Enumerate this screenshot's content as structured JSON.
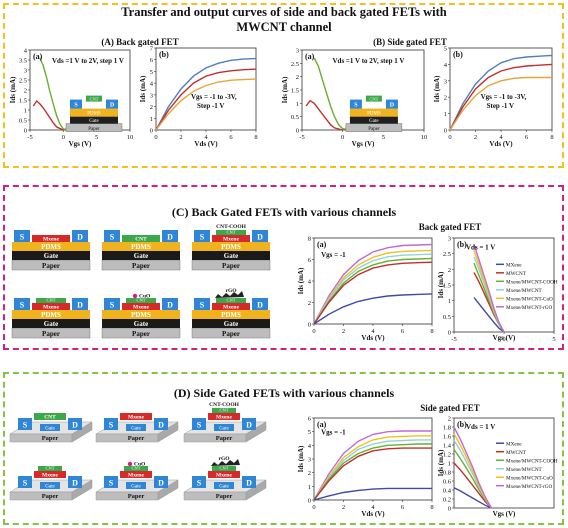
{
  "section1": {
    "title_line1": "Transfer and output curves of  side and back gated FETs with",
    "title_line2": "MWCNT channel",
    "back_label": "(A) Back gated FET",
    "side_label": "(B) Side gated FET"
  },
  "section2": {
    "title": "(C) Back Gated FETs with various channels",
    "chart_title": "Back gated FET"
  },
  "section3": {
    "title": "(D) Side Gated FETs with various channels",
    "chart_title": "Side gated FET"
  },
  "device_labels": {
    "s": "S",
    "d": "D",
    "gate": "Gate",
    "paper": "Paper",
    "pdms": "PDMS",
    "cnt": "CNT",
    "mxene": "Mxene",
    "cnt_cooh": "CNT-COOH",
    "cuo": "CuO",
    "rgo": "rGO"
  },
  "chart_data": [
    {
      "id": "A-a",
      "type": "line",
      "panel_label": "(a)",
      "annotation": "Vds =1 V to 2V, step 1 V",
      "xlabel": "Vgs (V)",
      "ylabel": "Ids (mA)",
      "xlim": [
        -5,
        10
      ],
      "ylim": [
        0,
        4
      ],
      "xticks": [
        -5,
        0,
        5,
        10
      ],
      "yticks": [
        0,
        0.5,
        1,
        1.5,
        2,
        2.5,
        3,
        3.5,
        4
      ],
      "series": [
        {
          "color": "#6aae2e",
          "x": [
            -3.5,
            -3,
            -2.5,
            -2,
            -1.5,
            -1,
            -0.5,
            0,
            1
          ],
          "y": [
            3.6,
            3.2,
            2.6,
            1.9,
            1.3,
            0.7,
            0.3,
            0.05,
            0.0
          ]
        },
        {
          "color": "#c0302c",
          "x": [
            -4.5,
            -4,
            -3.5,
            -3,
            -2.5,
            -2,
            -1.5,
            -1,
            0
          ],
          "y": [
            1.2,
            1.45,
            1.3,
            1.1,
            0.85,
            0.6,
            0.35,
            0.15,
            0.0
          ]
        }
      ]
    },
    {
      "id": "A-b",
      "type": "line",
      "panel_label": "(b)",
      "annotation": "Vgs = -1 to -3V, Step -1 V",
      "xlabel": "Vds (V)",
      "ylabel": "Ids (mA)",
      "xlim": [
        0,
        8
      ],
      "ylim": [
        0,
        7
      ],
      "xticks": [
        0,
        2,
        4,
        6,
        8
      ],
      "yticks": [
        0,
        1,
        2,
        3,
        4,
        5,
        6,
        7
      ],
      "series": [
        {
          "color": "#4d7fbf",
          "x": [
            0,
            1,
            2,
            3,
            4,
            5,
            6,
            7,
            8
          ],
          "y": [
            0,
            2.0,
            3.5,
            4.6,
            5.3,
            5.7,
            5.95,
            6.05,
            6.1
          ]
        },
        {
          "color": "#c0302c",
          "x": [
            0,
            1,
            2,
            3,
            4,
            5,
            6,
            7,
            8
          ],
          "y": [
            0,
            1.7,
            3.0,
            4.0,
            4.6,
            4.9,
            5.05,
            5.15,
            5.2
          ]
        },
        {
          "color": "#e8a33a",
          "x": [
            0,
            1,
            2,
            3,
            4,
            5,
            6,
            7,
            8
          ],
          "y": [
            0,
            1.4,
            2.5,
            3.3,
            3.8,
            4.1,
            4.25,
            4.3,
            4.35
          ]
        }
      ]
    },
    {
      "id": "B-a",
      "type": "line",
      "panel_label": "(a)",
      "annotation": "Vds =1 V to 2V, step 1 V",
      "xlabel": "Vgs (V)",
      "ylabel": "Ids (mA)",
      "xlim": [
        -5,
        10
      ],
      "ylim": [
        0,
        3
      ],
      "xticks": [
        -5,
        0,
        5,
        10
      ],
      "yticks": [
        0,
        0.5,
        1,
        1.5,
        2,
        2.5,
        3
      ],
      "series": [
        {
          "color": "#6aae2e",
          "x": [
            -3.5,
            -3,
            -2.5,
            -2,
            -1.5,
            -1,
            -0.5,
            0,
            1
          ],
          "y": [
            2.7,
            2.4,
            1.9,
            1.4,
            0.9,
            0.5,
            0.2,
            0.05,
            0.0
          ]
        },
        {
          "color": "#c0302c",
          "x": [
            -4.5,
            -4,
            -3.5,
            -3,
            -2.5,
            -2,
            -1.5,
            -1,
            0
          ],
          "y": [
            0.9,
            1.1,
            1.0,
            0.8,
            0.6,
            0.4,
            0.2,
            0.08,
            0.0
          ]
        }
      ]
    },
    {
      "id": "B-b",
      "type": "line",
      "panel_label": "(b)",
      "annotation": "Vgs = -1 to -3V, Step -1 V",
      "xlabel": "Vds (V)",
      "ylabel": "Ids (mA)",
      "xlim": [
        0,
        8
      ],
      "ylim": [
        0,
        5
      ],
      "xticks": [
        0,
        2,
        4,
        6,
        8
      ],
      "yticks": [
        0,
        1,
        2,
        3,
        4,
        5
      ],
      "series": [
        {
          "color": "#4d7fbf",
          "x": [
            0,
            1,
            2,
            3,
            4,
            5,
            6,
            7,
            8
          ],
          "y": [
            0,
            1.6,
            2.8,
            3.6,
            4.1,
            4.35,
            4.45,
            4.5,
            4.55
          ]
        },
        {
          "color": "#c0302c",
          "x": [
            0,
            1,
            2,
            3,
            4,
            5,
            6,
            7,
            8
          ],
          "y": [
            0,
            1.4,
            2.5,
            3.2,
            3.6,
            3.8,
            3.9,
            3.95,
            4.0
          ]
        },
        {
          "color": "#e8a33a",
          "x": [
            0,
            1,
            2,
            3,
            4,
            5,
            6,
            7,
            8
          ],
          "y": [
            0,
            1.2,
            2.1,
            2.7,
            3.0,
            3.15,
            3.2,
            3.2,
            3.2
          ]
        }
      ]
    },
    {
      "id": "C-a",
      "type": "line",
      "panel_label": "(a)",
      "annotation": "Vgs = -1",
      "xlabel": "Vds (V)",
      "ylabel": "Ids (mA)",
      "xlim": [
        0,
        8
      ],
      "ylim": [
        0,
        8
      ],
      "xticks": [
        0,
        2,
        4,
        6,
        8
      ],
      "yticks": [
        0,
        2,
        4,
        6,
        8
      ],
      "series": [
        {
          "color": "#c06ad6",
          "x": [
            0,
            1,
            2,
            3,
            4,
            5,
            6,
            7,
            8
          ],
          "y": [
            0,
            2.6,
            4.6,
            5.9,
            6.7,
            7.1,
            7.3,
            7.35,
            7.4
          ]
        },
        {
          "color": "#f2c21b",
          "x": [
            0,
            1,
            2,
            3,
            4,
            5,
            6,
            7,
            8
          ],
          "y": [
            0,
            2.4,
            4.3,
            5.5,
            6.2,
            6.6,
            6.75,
            6.8,
            6.85
          ]
        },
        {
          "color": "#8fd3d9",
          "x": [
            0,
            1,
            2,
            3,
            4,
            5,
            6,
            7,
            8
          ],
          "y": [
            0,
            2.3,
            4.1,
            5.2,
            5.9,
            6.25,
            6.4,
            6.45,
            6.5
          ]
        },
        {
          "color": "#6aae2e",
          "x": [
            0,
            1,
            2,
            3,
            4,
            5,
            6,
            7,
            8
          ],
          "y": [
            0,
            2.1,
            3.8,
            4.9,
            5.5,
            5.85,
            6.0,
            6.05,
            6.1
          ]
        },
        {
          "color": "#c0302c",
          "x": [
            0,
            1,
            2,
            3,
            4,
            5,
            6,
            7,
            8
          ],
          "y": [
            0,
            2.0,
            3.6,
            4.6,
            5.2,
            5.5,
            5.65,
            5.7,
            5.75
          ]
        },
        {
          "color": "#3d4aa8",
          "x": [
            0,
            1,
            2,
            3,
            4,
            5,
            6,
            7,
            8
          ],
          "y": [
            0,
            0.9,
            1.6,
            2.1,
            2.4,
            2.6,
            2.7,
            2.75,
            2.8
          ]
        }
      ]
    },
    {
      "id": "C-b",
      "type": "line",
      "panel_label": "(b)",
      "annotation": "Vds = 1 V",
      "xlabel": "Vgs (V)",
      "ylabel": "Ids (mA)",
      "xlim": [
        -5,
        5
      ],
      "ylim": [
        0,
        3
      ],
      "xticks": [
        -5,
        0,
        5
      ],
      "yticks": [
        0,
        0.5,
        1,
        1.5,
        2,
        2.5,
        3
      ],
      "legend": [
        "MXene",
        "MWCNT",
        "Mxene/MWCNT-COOH",
        "Mxene/MWCNT",
        "Mxene/MWCNT-CuO",
        "Mxene/MWCNT-rGO"
      ],
      "series": [
        {
          "name": "MXene",
          "color": "#3d4aa8",
          "x": [
            -3,
            -2.5,
            -2,
            -1.5,
            -1,
            -0.5,
            0
          ],
          "y": [
            1.1,
            0.9,
            0.7,
            0.5,
            0.3,
            0.12,
            0.0
          ]
        },
        {
          "name": "MWCNT",
          "color": "#c0302c",
          "x": [
            -3,
            -2.5,
            -2,
            -1.5,
            -1,
            -0.5,
            0
          ],
          "y": [
            1.9,
            1.6,
            1.25,
            0.9,
            0.55,
            0.25,
            0.0
          ]
        },
        {
          "name": "Mxene/MWCNT-COOH",
          "color": "#6aae2e",
          "x": [
            -3,
            -2.5,
            -2,
            -1.5,
            -1,
            -0.5,
            0
          ],
          "y": [
            2.2,
            1.8,
            1.4,
            1.0,
            0.6,
            0.25,
            0.0
          ]
        },
        {
          "name": "Mxene/MWCNT",
          "color": "#8fd3d9",
          "x": [
            -3,
            -2.5,
            -2,
            -1.5,
            -1,
            -0.5,
            0
          ],
          "y": [
            2.4,
            2.0,
            1.55,
            1.1,
            0.65,
            0.28,
            0.0
          ]
        },
        {
          "name": "Mxene/MWCNT-CuO",
          "color": "#f2c21b",
          "x": [
            -3,
            -2.5,
            -2,
            -1.5,
            -1,
            -0.5,
            0
          ],
          "y": [
            2.6,
            2.15,
            1.65,
            1.2,
            0.7,
            0.3,
            0.0
          ]
        },
        {
          "name": "Mxene/MWCNT-rGO",
          "color": "#c06ad6",
          "x": [
            -3,
            -2.5,
            -2,
            -1.5,
            -1,
            -0.5,
            0
          ],
          "y": [
            2.8,
            2.3,
            1.8,
            1.3,
            0.75,
            0.3,
            0.0
          ]
        }
      ]
    },
    {
      "id": "D-a",
      "type": "line",
      "panel_label": "(a)",
      "annotation": "Vgs = -1",
      "xlabel": "Vds (V)",
      "ylabel": "Ids (mA)",
      "xlim": [
        0,
        8
      ],
      "ylim": [
        0,
        6
      ],
      "xticks": [
        0,
        2,
        4,
        6,
        8
      ],
      "yticks": [
        0,
        1,
        2,
        3,
        4,
        5,
        6
      ],
      "series": [
        {
          "color": "#c06ad6",
          "x": [
            0,
            1,
            2,
            3,
            4,
            5,
            6,
            7,
            8
          ],
          "y": [
            0,
            1.9,
            3.4,
            4.3,
            4.8,
            5.0,
            5.05,
            5.05,
            5.05
          ]
        },
        {
          "color": "#f2c21b",
          "x": [
            0,
            1,
            2,
            3,
            4,
            5,
            6,
            7,
            8
          ],
          "y": [
            0,
            1.7,
            3.1,
            3.9,
            4.4,
            4.6,
            4.65,
            4.7,
            4.7
          ]
        },
        {
          "color": "#8fd3d9",
          "x": [
            0,
            1,
            2,
            3,
            4,
            5,
            6,
            7,
            8
          ],
          "y": [
            0,
            1.6,
            2.9,
            3.7,
            4.1,
            4.3,
            4.35,
            4.4,
            4.4
          ]
        },
        {
          "color": "#6aae2e",
          "x": [
            0,
            1,
            2,
            3,
            4,
            5,
            6,
            7,
            8
          ],
          "y": [
            0,
            1.5,
            2.7,
            3.4,
            3.8,
            4.0,
            4.05,
            4.1,
            4.1
          ]
        },
        {
          "color": "#c0302c",
          "x": [
            0,
            1,
            2,
            3,
            4,
            5,
            6,
            7,
            8
          ],
          "y": [
            0,
            1.4,
            2.5,
            3.2,
            3.6,
            3.75,
            3.8,
            3.8,
            3.8
          ]
        },
        {
          "color": "#3d4aa8",
          "x": [
            0,
            1,
            2,
            3,
            4,
            5,
            6,
            7,
            8
          ],
          "y": [
            0,
            0.3,
            0.55,
            0.7,
            0.8,
            0.85,
            0.85,
            0.85,
            0.85
          ]
        }
      ]
    },
    {
      "id": "D-b",
      "type": "line",
      "panel_label": "(b)",
      "annotation": "Vds = 1 V",
      "xlabel": "Vgs (V)",
      "ylabel": "Ids (mA)",
      "xlim": [
        -3,
        5
      ],
      "ylim": [
        0,
        2
      ],
      "xticks": [],
      "yticks": [
        0,
        0.2,
        0.4,
        0.6,
        0.8,
        1,
        1.2,
        1.4,
        1.6,
        1.8,
        2
      ],
      "legend": [
        "MXene",
        "MWCNT",
        "Mxene/MWCNT-COOH",
        "Mxene/MWCNT",
        "Mxene/MWCNT-CuO",
        "Mxene/MWCNT-rGO"
      ],
      "series": [
        {
          "name": "MXene",
          "color": "#3d4aa8",
          "x": [
            -3,
            -2.5,
            -2,
            -1.5,
            -1,
            -0.5,
            0
          ],
          "y": [
            0.45,
            0.38,
            0.3,
            0.22,
            0.14,
            0.06,
            0.0
          ]
        },
        {
          "name": "MWCNT",
          "color": "#c0302c",
          "x": [
            -3,
            -2.5,
            -2,
            -1.5,
            -1,
            -0.5,
            0
          ],
          "y": [
            1.0,
            0.85,
            0.68,
            0.5,
            0.32,
            0.14,
            0.0
          ]
        },
        {
          "name": "Mxene/MWCNT-COOH",
          "color": "#6aae2e",
          "x": [
            -3,
            -2.5,
            -2,
            -1.5,
            -1,
            -0.5,
            0
          ],
          "y": [
            1.3,
            1.1,
            0.88,
            0.65,
            0.4,
            0.18,
            0.0
          ]
        },
        {
          "name": "Mxene/MWCNT",
          "color": "#8fd3d9",
          "x": [
            -3,
            -2.5,
            -2,
            -1.5,
            -1,
            -0.5,
            0
          ],
          "y": [
            1.5,
            1.28,
            1.02,
            0.75,
            0.46,
            0.2,
            0.0
          ]
        },
        {
          "name": "Mxene/MWCNT-CuO",
          "color": "#f2c21b",
          "x": [
            -3,
            -2.5,
            -2,
            -1.5,
            -1,
            -0.5,
            0
          ],
          "y": [
            1.65,
            1.4,
            1.12,
            0.82,
            0.5,
            0.22,
            0.0
          ]
        },
        {
          "name": "Mxene/MWCNT-rGO",
          "color": "#c06ad6",
          "x": [
            -3,
            -2.5,
            -2,
            -1.5,
            -1,
            -0.5,
            0
          ],
          "y": [
            1.8,
            1.53,
            1.22,
            0.9,
            0.55,
            0.24,
            0.0
          ]
        }
      ]
    }
  ]
}
